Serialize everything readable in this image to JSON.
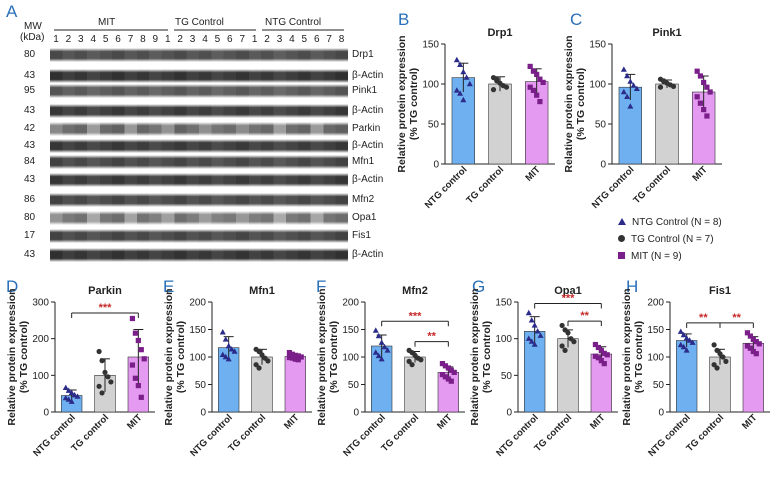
{
  "panel_letters": [
    "A",
    "B",
    "C",
    "D",
    "E",
    "F",
    "G",
    "H"
  ],
  "blot": {
    "mw_header": "MW",
    "kda_header": "(kDa)",
    "groups": [
      "MIT",
      "TG Control",
      "NTG Control"
    ],
    "lanes": {
      "mit": [
        "1",
        "2",
        "3",
        "4",
        "5",
        "6",
        "7",
        "8",
        "9"
      ],
      "tg": [
        "1",
        "2",
        "3",
        "4",
        "5",
        "6",
        "7"
      ],
      "ntg": [
        "1",
        "2",
        "3",
        "4",
        "5",
        "6",
        "7",
        "8"
      ]
    },
    "rows": [
      {
        "mw": "80",
        "label": "Drp1",
        "shade": 0.35
      },
      {
        "mw": "43",
        "label": "β-Actin",
        "shade": 0.15
      },
      {
        "mw": "95",
        "label": "Pink1",
        "shade": 0.45
      },
      {
        "mw": "43",
        "label": "β-Actin",
        "shade": 0.2
      },
      {
        "mw": "42",
        "label": "Parkin",
        "shade": 0.55
      },
      {
        "mw": "43",
        "label": "β-Actin",
        "shade": 0.2
      },
      {
        "mw": "84",
        "label": "Mfn1",
        "shade": 0.3
      },
      {
        "mw": "43",
        "label": "β-Actin",
        "shade": 0.2
      },
      {
        "mw": "86",
        "label": "Mfn2",
        "shade": 0.3
      },
      {
        "mw": "80",
        "label": "Opa1",
        "shade": 0.65
      },
      {
        "mw": "17",
        "label": "Fis1",
        "shade": 0.3
      },
      {
        "mw": "43",
        "label": "β-Actin",
        "shade": 0.15
      }
    ]
  },
  "legend": {
    "items": [
      {
        "label": "NTG Control (N = 8)",
        "marker": "triangle",
        "color": "#2b2b8a"
      },
      {
        "label": "TG Control (N = 7)",
        "marker": "circle",
        "color": "#333333"
      },
      {
        "label": "MIT (N = 9)",
        "marker": "square",
        "color": "#7a1f8a"
      }
    ]
  },
  "colors": {
    "ntg": "#6fb1f0",
    "tg": "#d2d2d2",
    "mit": "#e49af0",
    "sig": "#c62828"
  },
  "chart_data": [
    {
      "id": "B",
      "type": "bar",
      "title": "Drp1",
      "ylabel": "Relative protein expression\n(% TG  control)",
      "categories": [
        "NTG control",
        "TG control",
        "MIT"
      ],
      "values": [
        108,
        100,
        103
      ],
      "errors": [
        18,
        9,
        16
      ],
      "ylim": [
        0,
        150
      ],
      "yticks": [
        "0",
        "50",
        "100",
        "150"
      ],
      "sig": [],
      "points": [
        [
          130,
          124,
          115,
          108,
          100,
          92,
          88,
          80
        ],
        [
          108,
          104,
          101,
          98,
          96,
          93,
          106
        ],
        [
          122,
          116,
          112,
          106,
          102,
          96,
          92,
          86,
          78
        ]
      ]
    },
    {
      "id": "C",
      "type": "bar",
      "title": "Pink1",
      "ylabel": "Relative protein expression\n(% TG  control)",
      "categories": [
        "NTG control",
        "TG control",
        "MIT"
      ],
      "values": [
        96,
        100,
        90
      ],
      "errors": [
        16,
        5,
        20
      ],
      "ylim": [
        0,
        150
      ],
      "yticks": [
        "0",
        "50",
        "100",
        "150"
      ],
      "sig": [],
      "points": [
        [
          118,
          110,
          103,
          98,
          94,
          90,
          84,
          72
        ],
        [
          106,
          104,
          101,
          99,
          97,
          96,
          103
        ],
        [
          116,
          110,
          102,
          96,
          90,
          84,
          76,
          68,
          60
        ]
      ]
    },
    {
      "id": "D",
      "type": "bar",
      "title": "Parkin",
      "ylabel": "Relative protein expression\n(% TG  control)",
      "categories": [
        "NTG control",
        "TG control",
        "MIT"
      ],
      "values": [
        45,
        100,
        150
      ],
      "errors": [
        15,
        45,
        75
      ],
      "ylim": [
        0,
        300
      ],
      "yticks": [
        "0",
        "100",
        "200",
        "300"
      ],
      "sig": [
        {
          "from": 0,
          "to": 2,
          "label": "***",
          "y": 270
        }
      ],
      "points": [
        [
          66,
          58,
          52,
          46,
          42,
          38,
          34,
          28
        ],
        [
          165,
          140,
          108,
          96,
          82,
          70,
          52
        ],
        [
          255,
          215,
          195,
          170,
          145,
          128,
          92,
          72,
          40
        ]
      ]
    },
    {
      "id": "E",
      "type": "bar",
      "title": "Mfn1",
      "ylabel": "Relative protein expression\n(% TG  control)",
      "categories": [
        "NTG control",
        "TG control",
        "MIT"
      ],
      "values": [
        117,
        100,
        101
      ],
      "errors": [
        20,
        14,
        4
      ],
      "ylim": [
        0,
        200
      ],
      "yticks": [
        "0",
        "50",
        "100",
        "150",
        "200"
      ],
      "sig": [],
      "points": [
        [
          145,
          132,
          120,
          114,
          110,
          104,
          100,
          96
        ],
        [
          114,
          110,
          104,
          98,
          93,
          86,
          80
        ],
        [
          108,
          105,
          103,
          102,
          100,
          99,
          98,
          96,
          95
        ]
      ]
    },
    {
      "id": "F",
      "type": "bar",
      "title": "Mfn2",
      "ylabel": "Relative protein expression\n(% TG  control)",
      "categories": [
        "NTG control",
        "TG control",
        "MIT"
      ],
      "values": [
        120,
        100,
        72
      ],
      "errors": [
        20,
        10,
        10
      ],
      "ylim": [
        0,
        200
      ],
      "yticks": [
        "0",
        "50",
        "100",
        "150",
        "200"
      ],
      "sig": [
        {
          "from": 0,
          "to": 2,
          "label": "***",
          "y": 165
        },
        {
          "from": 1,
          "to": 2,
          "label": "**",
          "y": 128
        }
      ],
      "points": [
        [
          148,
          138,
          126,
          118,
          112,
          108,
          102,
          96
        ],
        [
          112,
          108,
          103,
          98,
          95,
          92,
          86
        ],
        [
          88,
          84,
          80,
          76,
          72,
          68,
          64,
          60,
          56
        ]
      ]
    },
    {
      "id": "G",
      "type": "bar",
      "title": "Opa1",
      "ylabel": "Relative protein expression\n(% TG  control)",
      "categories": [
        "NTG control",
        "TG control",
        "MIT"
      ],
      "values": [
        110,
        100,
        79
      ],
      "errors": [
        20,
        12,
        10
      ],
      "ylim": [
        0,
        150
      ],
      "yticks": [
        "0",
        "50",
        "100",
        "150"
      ],
      "sig": [
        {
          "from": 0,
          "to": 2,
          "label": "***",
          "y": 148
        },
        {
          "from": 1,
          "to": 2,
          "label": "**",
          "y": 124
        }
      ],
      "points": [
        [
          135,
          125,
          118,
          110,
          104,
          100,
          96,
          92
        ],
        [
          118,
          112,
          108,
          100,
          96,
          90,
          84
        ],
        [
          92,
          88,
          84,
          80,
          78,
          76,
          74,
          70,
          66
        ]
      ]
    },
    {
      "id": "H",
      "type": "bar",
      "title": "Fis1",
      "ylabel": "Relative protein expression\n(% TG  control)",
      "categories": [
        "NTG control",
        "TG control",
        "MIT"
      ],
      "values": [
        130,
        100,
        125
      ],
      "errors": [
        12,
        14,
        12
      ],
      "ylim": [
        0,
        200
      ],
      "yticks": [
        "0",
        "50",
        "100",
        "150",
        "200"
      ],
      "sig": [
        {
          "from": 0,
          "to": 1,
          "label": "**",
          "y": 162
        },
        {
          "from": 1,
          "to": 2,
          "label": "**",
          "y": 162
        }
      ],
      "points": [
        [
          146,
          140,
          134,
          130,
          126,
          122,
          118,
          112
        ],
        [
          122,
          112,
          106,
          100,
          92,
          86,
          80
        ],
        [
          144,
          138,
          132,
          128,
          124,
          120,
          116,
          110,
          106
        ]
      ]
    }
  ]
}
